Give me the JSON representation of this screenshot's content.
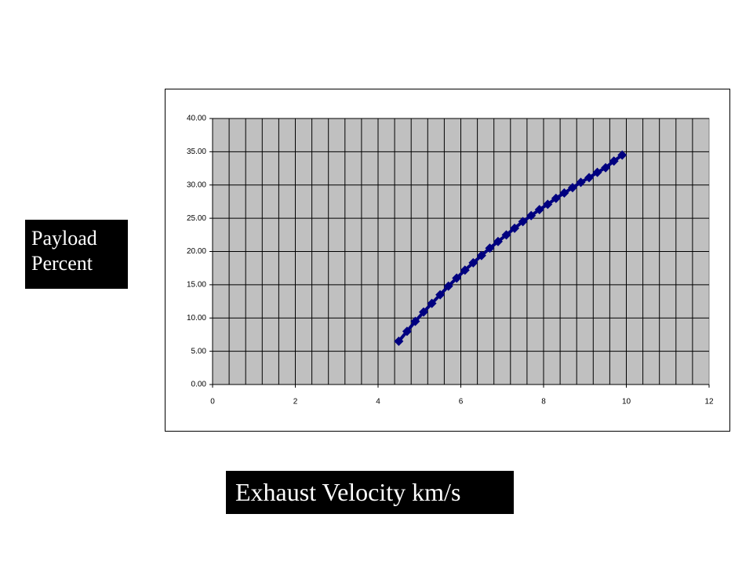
{
  "chart_data": {
    "type": "line",
    "y_label": "Payload Percent",
    "x_label": "Exhaust Velocity km/s",
    "x": [
      4.5,
      4.7,
      4.9,
      5.1,
      5.3,
      5.5,
      5.7,
      5.9,
      6.1,
      6.3,
      6.5,
      6.7,
      6.9,
      7.1,
      7.3,
      7.5,
      7.7,
      7.9,
      8.1,
      8.3,
      8.5,
      8.7,
      8.9,
      9.1,
      9.3,
      9.5,
      9.7,
      9.9
    ],
    "series": [
      {
        "color": "#000080",
        "values": [
          6.5,
          8.0,
          9.5,
          10.9,
          12.2,
          13.5,
          14.8,
          16.0,
          17.2,
          18.3,
          19.4,
          20.5,
          21.5,
          22.5,
          23.5,
          24.5,
          25.4,
          26.3,
          27.1,
          28.0,
          28.8,
          29.6,
          30.4,
          31.1,
          31.9,
          32.6,
          33.6,
          34.5
        ]
      }
    ],
    "xlim": [
      0,
      12
    ],
    "xticks": [
      0,
      2,
      4,
      6,
      8,
      10,
      12
    ],
    "x_minor_grid": 0.4,
    "ylim": [
      0,
      40
    ],
    "yticks": [
      {
        "value": 0,
        "label": "0.00"
      },
      {
        "value": 5,
        "label": "5.00"
      },
      {
        "value": 10,
        "label": "10.00"
      },
      {
        "value": 15,
        "label": "15.00"
      },
      {
        "value": 20,
        "label": "20.00"
      },
      {
        "value": 25,
        "label": "25.00"
      },
      {
        "value": 30,
        "label": "30.00"
      },
      {
        "value": 35,
        "label": "35.00"
      },
      {
        "value": 40,
        "label": "40.00"
      }
    ],
    "grid": true,
    "plot_background": "#c0c0c0"
  }
}
